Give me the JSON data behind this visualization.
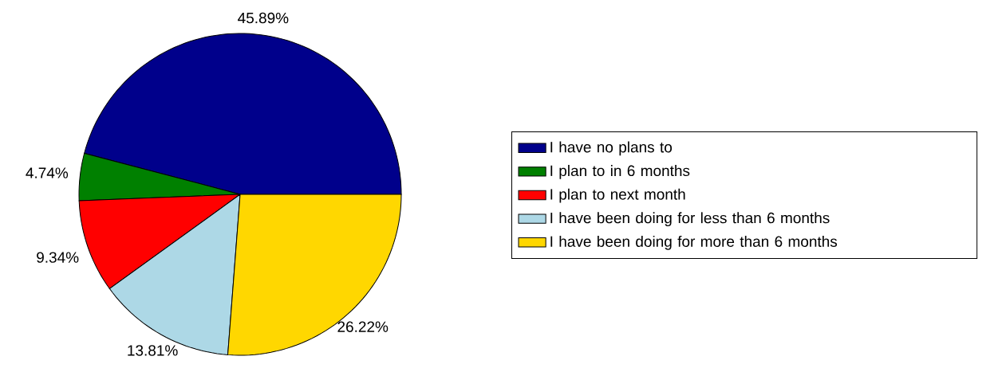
{
  "chart_data": {
    "type": "pie",
    "categories": [
      "I have no plans to",
      "I plan to in 6 months",
      "I plan to next month",
      "I have been doing for less than 6 months",
      "I have been doing for more than 6 months"
    ],
    "values": [
      45.89,
      4.74,
      9.34,
      13.81,
      26.22
    ],
    "value_labels": [
      "45.89%",
      "4.74%",
      "9.34%",
      "13.81%",
      "26.22%"
    ],
    "colors": [
      "#00008b",
      "#008000",
      "#ff0000",
      "#add8e6",
      "#ffd700"
    ],
    "legend": "right"
  }
}
